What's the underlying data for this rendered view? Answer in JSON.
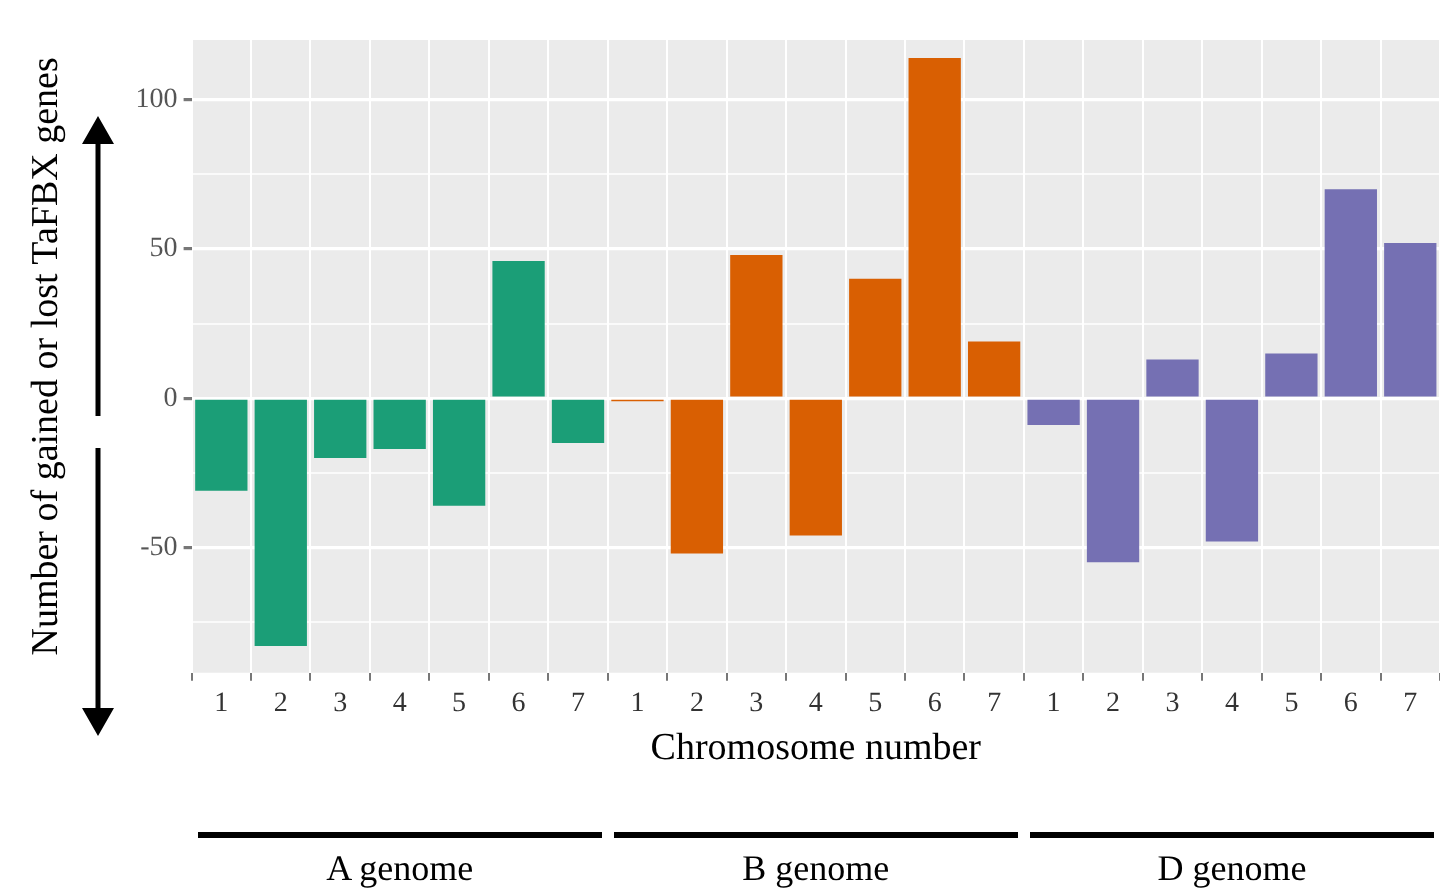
{
  "chart_data": {
    "type": "bar",
    "xlabel": "Chromosome number",
    "ylabel": "Number of gained or lost TaFBX genes",
    "categories": [
      "1",
      "2",
      "3",
      "4",
      "5",
      "6",
      "7",
      "1",
      "2",
      "3",
      "4",
      "5",
      "6",
      "7",
      "1",
      "2",
      "3",
      "4",
      "5",
      "6",
      "7"
    ],
    "values": [
      -31,
      -83,
      -20,
      -17,
      -36,
      46,
      -15,
      -1,
      -52,
      48,
      -46,
      40,
      114,
      19,
      -9,
      -55,
      13,
      -48,
      15,
      70,
      52
    ],
    "colors": [
      "#1b9e77",
      "#1b9e77",
      "#1b9e77",
      "#1b9e77",
      "#1b9e77",
      "#1b9e77",
      "#1b9e77",
      "#d95f02",
      "#d95f02",
      "#d95f02",
      "#d95f02",
      "#d95f02",
      "#d95f02",
      "#d95f02",
      "#7570b3",
      "#7570b3",
      "#7570b3",
      "#7570b3",
      "#7570b3",
      "#7570b3",
      "#7570b3"
    ],
    "ylim": [
      -92,
      120
    ],
    "yticks": [
      {
        "value": -75,
        "label": null
      },
      -50,
      {
        "value": -25,
        "label": null
      },
      0,
      {
        "value": 25,
        "label": null
      },
      50,
      {
        "value": 75,
        "label": null
      },
      100
    ],
    "grid": true,
    "legend": false,
    "annotations": [
      "A genome",
      "B genome",
      "D genome"
    ]
  }
}
